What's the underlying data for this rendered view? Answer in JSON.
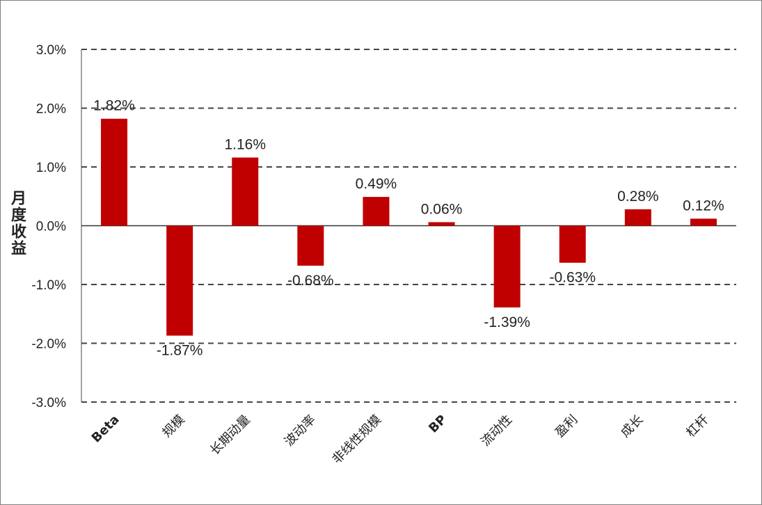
{
  "chart_data": {
    "type": "bar",
    "ylabel": "月度收益",
    "ylim": [
      -0.03,
      0.03
    ],
    "yticks": [
      0.03,
      0.02,
      0.01,
      0.0,
      -0.01,
      -0.02,
      -0.03
    ],
    "ytick_labels": [
      "3.0%",
      "2.0%",
      "1.0%",
      "0.0%",
      "-1.0%",
      "-2.0%",
      "-3.0%"
    ],
    "grid": "horizontal dashed",
    "categories": [
      "Beta",
      "规模",
      "长期动量",
      "波动率",
      "非线性规模",
      "BP",
      "流动性",
      "盈利",
      "成长",
      "杠杆"
    ],
    "values": [
      0.0182,
      -0.0187,
      0.0116,
      -0.0068,
      0.0049,
      0.0006,
      -0.0139,
      -0.0063,
      0.0028,
      0.0012
    ],
    "value_labels": [
      "1.82%",
      "-1.87%",
      "1.16%",
      "-0.68%",
      "0.49%",
      "0.06%",
      "-1.39%",
      "-0.63%",
      "0.28%",
      "0.12%"
    ],
    "bar_color": "#c00000"
  }
}
